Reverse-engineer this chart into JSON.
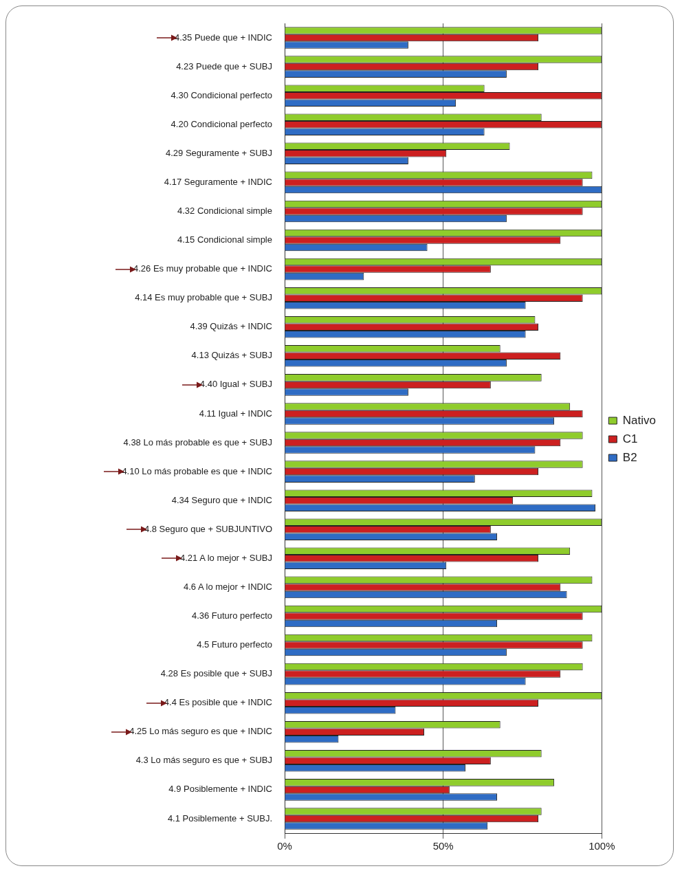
{
  "chart_data": {
    "type": "bar",
    "orientation": "horizontal",
    "categories": [
      "4.35 Puede que + INDIC",
      "4.23 Puede que + SUBJ",
      "4.30 Condicional perfecto",
      "4.20 Condicional perfecto",
      "4.29 Seguramente + SUBJ",
      "4.17 Seguramente + INDIC",
      "4.32 Condicional simple",
      "4.15 Condicional simple",
      "4.26 Es muy probable que + INDIC",
      "4.14 Es muy probable que + SUBJ",
      "4.39 Quizás + INDIC",
      "4.13 Quizás + SUBJ",
      "4.40 Igual + SUBJ",
      "4.11 Igual + INDIC",
      "4.38 Lo más probable es que + SUBJ",
      "4.10 Lo más probable es que + INDIC",
      "4.34 Seguro que + INDIC",
      "4.8 Seguro que + SUBJUNTIVO",
      "4.21 A lo mejor + SUBJ",
      "4.6 A lo mejor + INDIC",
      "4.36 Futuro perfecto",
      "4.5 Futuro perfecto",
      "4.28 Es posible que + SUBJ",
      "4.4 Es posible que + INDIC",
      "4.25 Lo más seguro es que + INDIC",
      "4.3 Lo más seguro es que + SUBJ",
      "4.9 Posiblemente + INDIC",
      "4.1 Posiblemente + SUBJ."
    ],
    "series": [
      {
        "name": "Nativo",
        "color": "#8fcc2c",
        "values": [
          100,
          100,
          63,
          81,
          71,
          97,
          100,
          100,
          100,
          100,
          79,
          68,
          81,
          90,
          94,
          94,
          97,
          100,
          90,
          97,
          100,
          97,
          94,
          100,
          68,
          81,
          85,
          81
        ]
      },
      {
        "name": "C1",
        "color": "#cc2020",
        "values": [
          80,
          80,
          100,
          100,
          51,
          94,
          94,
          87,
          65,
          94,
          80,
          87,
          65,
          94,
          87,
          80,
          72,
          65,
          80,
          87,
          94,
          94,
          87,
          80,
          44,
          65,
          52,
          80
        ]
      },
      {
        "name": "B2",
        "color": "#2f6cc4",
        "values": [
          39,
          70,
          54,
          63,
          39,
          100,
          70,
          45,
          25,
          76,
          76,
          70,
          39,
          85,
          79,
          60,
          98,
          67,
          51,
          89,
          67,
          70,
          76,
          35,
          17,
          57,
          67,
          64
        ]
      }
    ],
    "xlim": [
      0,
      100
    ],
    "xticks": [
      {
        "value": 0,
        "label": "0%"
      },
      {
        "value": 50,
        "label": "50%"
      },
      {
        "value": 100,
        "label": "100%"
      }
    ],
    "grid": "x",
    "legend": "right"
  }
}
